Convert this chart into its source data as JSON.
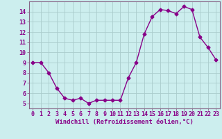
{
  "x": [
    0,
    1,
    2,
    3,
    4,
    5,
    6,
    7,
    8,
    9,
    10,
    11,
    12,
    13,
    14,
    15,
    16,
    17,
    18,
    19,
    20,
    21,
    22,
    23
  ],
  "y": [
    9.0,
    9.0,
    8.0,
    6.5,
    5.5,
    5.3,
    5.5,
    5.0,
    5.3,
    5.3,
    5.3,
    5.3,
    7.5,
    9.0,
    11.8,
    13.5,
    14.2,
    14.1,
    13.8,
    14.5,
    14.2,
    11.5,
    10.5,
    9.3
  ],
  "line_color": "#880088",
  "marker": "D",
  "markersize": 2.5,
  "linewidth": 1.0,
  "bg_color": "#cceeee",
  "grid_color": "#aacccc",
  "xlabel": "Windchill (Refroidissement éolien,°C)",
  "xlabel_fontsize": 6.5,
  "tick_fontsize": 6,
  "ylim": [
    4.5,
    15.0
  ],
  "xlim": [
    -0.5,
    23.5
  ],
  "yticks": [
    5,
    6,
    7,
    8,
    9,
    10,
    11,
    12,
    13,
    14
  ],
  "xticks": [
    0,
    1,
    2,
    3,
    4,
    5,
    6,
    7,
    8,
    9,
    10,
    11,
    12,
    13,
    14,
    15,
    16,
    17,
    18,
    19,
    20,
    21,
    22,
    23
  ],
  "tick_color": "#880088",
  "spine_color": "#886688"
}
